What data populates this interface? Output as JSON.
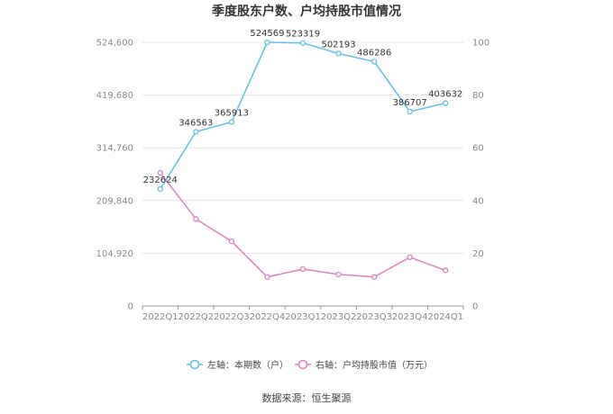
{
  "title": "季度股东户数、户均持股市值情况",
  "source": "数据来源：恒生聚源",
  "legend": {
    "left": "左轴：本期数（户）",
    "right": "右轴：户均持股市值（万元）"
  },
  "colors": {
    "left_series": "#5bc0eb",
    "right_series": "#e07fc0"
  },
  "chart_data": {
    "type": "line",
    "title": "季度股东户数、户均持股市值情况",
    "x": [
      "2022Q1",
      "2022Q2",
      "2022Q3",
      "2022Q4",
      "2023Q1",
      "2023Q2",
      "2023Q3",
      "2023Q4",
      "2024Q1"
    ],
    "left_axis": {
      "ylim": [
        0,
        524600
      ],
      "ticks": [
        "0",
        "104,920",
        "209,840",
        "314,760",
        "419,680",
        "524,600"
      ]
    },
    "right_axis": {
      "ylim": [
        0,
        100
      ],
      "ticks": [
        "0",
        "20",
        "40",
        "60",
        "80",
        "100"
      ]
    },
    "series": [
      {
        "name": "左轴：本期数（户）",
        "axis": "left",
        "values": [
          232624,
          346563,
          365913,
          524569,
          523319,
          502193,
          486286,
          386707,
          403632
        ],
        "labels": [
          "232624",
          "346563",
          "365913",
          "524569",
          "523319",
          "502193",
          "486286",
          "386707",
          "403632"
        ]
      },
      {
        "name": "右轴：户均持股市值（万元）",
        "axis": "right",
        "values": [
          50.5,
          33.0,
          24.5,
          11.0,
          14.0,
          12.0,
          11.0,
          18.5,
          13.5
        ]
      }
    ],
    "grid": true,
    "legend_position": "bottom"
  }
}
